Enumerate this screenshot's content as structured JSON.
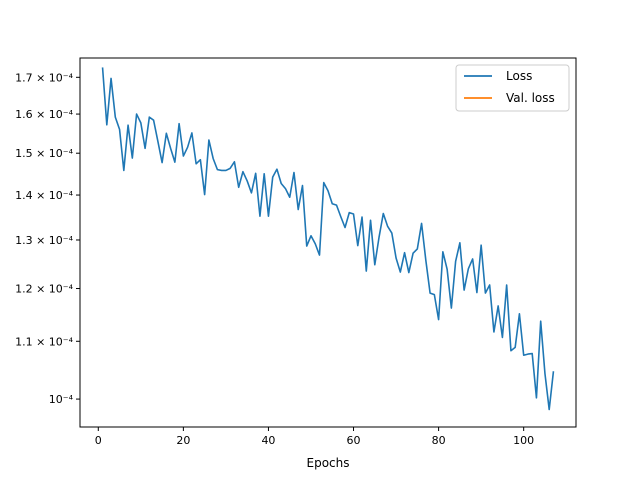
{
  "chart_data": {
    "type": "line",
    "title": "",
    "xlabel": "Epochs",
    "ylabel": "",
    "xlim": [
      -4.3,
      112.3
    ],
    "ylim": [
      9.55e-05,
      0.0001755
    ],
    "yscale": "log",
    "grid": false,
    "legend_position": "top-right",
    "x_ticks": [
      0,
      20,
      40,
      60,
      80,
      100
    ],
    "x_tick_labels": [
      "0",
      "20",
      "40",
      "60",
      "80",
      "100"
    ],
    "y_ticks": [
      0.0001,
      0.00011,
      0.00012,
      0.00013,
      0.00014,
      0.00015,
      0.00016,
      0.00017
    ],
    "y_tick_labels": [
      "10⁻⁴",
      "1.1 × 10⁻⁴",
      "1.2 × 10⁻⁴",
      "1.3 × 10⁻⁴",
      "1.4 × 10⁻⁴",
      "1.5 × 10⁻⁴",
      "1.6 × 10⁻⁴",
      "1.7 × 10⁻⁴"
    ],
    "series": [
      {
        "name": "Loss",
        "color": "#1f77b4",
        "x": [
          1,
          2,
          3,
          4,
          5,
          6,
          7,
          8,
          9,
          10,
          11,
          12,
          13,
          14,
          15,
          16,
          17,
          18,
          19,
          20,
          21,
          22,
          23,
          24,
          25,
          26,
          27,
          28,
          29,
          30,
          31,
          32,
          33,
          34,
          35,
          36,
          37,
          38,
          39,
          40,
          41,
          42,
          43,
          44,
          45,
          46,
          47,
          48,
          49,
          50,
          51,
          52,
          53,
          54,
          55,
          56,
          57,
          58,
          59,
          60,
          61,
          62,
          63,
          64,
          65,
          66,
          67,
          68,
          69,
          70,
          71,
          72,
          73,
          74,
          75,
          76,
          77,
          78,
          79,
          80,
          81,
          82,
          83,
          84,
          85,
          86,
          87,
          88,
          89,
          90,
          91,
          92,
          93,
          94,
          95,
          96,
          97,
          98,
          99,
          100,
          101,
          102,
          103,
          104,
          105,
          106,
          107
        ],
        "y": [
          0.0001728,
          0.0001572,
          0.0001697,
          0.0001592,
          0.000156,
          0.0001458,
          0.0001571,
          0.0001488,
          0.00016,
          0.0001577,
          0.0001512,
          0.0001592,
          0.0001584,
          0.000153,
          0.0001477,
          0.000155,
          0.0001512,
          0.0001478,
          0.0001575,
          0.0001493,
          0.0001515,
          0.0001551,
          0.0001474,
          0.0001484,
          0.0001401,
          0.0001533,
          0.0001487,
          0.000146,
          0.0001458,
          0.0001458,
          0.0001463,
          0.0001479,
          0.0001418,
          0.0001455,
          0.0001433,
          0.0001405,
          0.0001451,
          0.0001352,
          0.000145,
          0.0001352,
          0.0001442,
          0.0001461,
          0.0001427,
          0.0001415,
          0.0001395,
          0.0001453,
          0.0001367,
          0.0001422,
          0.0001287,
          0.0001309,
          0.0001292,
          0.0001268,
          0.0001429,
          0.000141,
          0.000138,
          0.0001377,
          0.0001351,
          0.0001327,
          0.000136,
          0.0001357,
          0.0001288,
          0.000135,
          0.0001235,
          0.0001343,
          0.0001248,
          0.0001306,
          0.0001358,
          0.000133,
          0.0001315,
          0.0001262,
          0.0001233,
          0.0001273,
          0.0001232,
          0.0001272,
          0.0001281,
          0.0001336,
          0.0001257,
          0.0001191,
          0.0001188,
          0.000114,
          0.0001275,
          0.0001239,
          0.0001162,
          0.0001255,
          0.0001294,
          0.0001197,
          0.000124,
          0.000126,
          0.0001192,
          0.0001289,
          0.0001191,
          0.0001207,
          0.0001117,
          0.0001166,
          0.0001107,
          0.0001207,
          0.0001083,
          0.0001089,
          0.0001151,
          0.0001075,
          0.0001077,
          0.0001078,
          0.0001002,
          0.0001137,
          0.0001043,
          9.83e-05,
          0.0001047
        ]
      },
      {
        "name": "Val. loss",
        "color": "#ff7f0e",
        "x": [],
        "y": []
      }
    ]
  }
}
